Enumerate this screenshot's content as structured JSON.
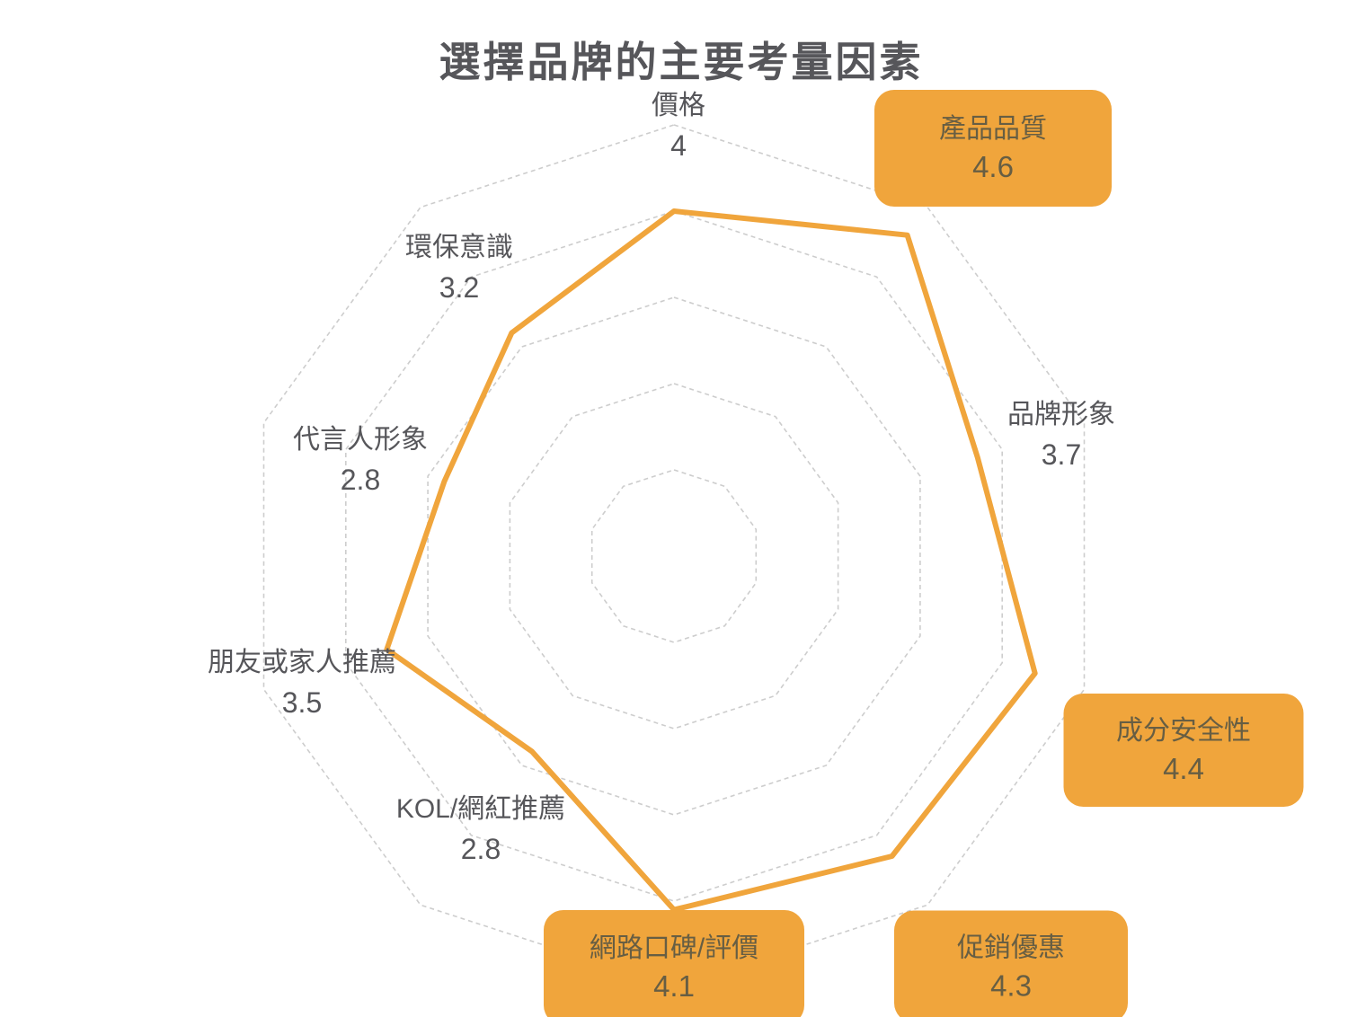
{
  "chart_data": {
    "type": "radar",
    "title": "選擇品牌的主要考量因素",
    "scale": {
      "min": 0,
      "max": 5,
      "ring_count": 5,
      "axis_count": 10,
      "grid": "dashed-decagon",
      "radial_spokes": false
    },
    "legend": null,
    "indicators": [
      {
        "label": "價格",
        "value": 4.0,
        "display": "4",
        "badge": false
      },
      {
        "label": "產品品質",
        "value": 4.6,
        "display": "4.6",
        "badge": true
      },
      {
        "label": "品牌形象",
        "value": 3.7,
        "display": "3.7",
        "badge": false
      },
      {
        "label": "成分安全性",
        "value": 4.4,
        "display": "4.4",
        "badge": true
      },
      {
        "label": "促銷優惠",
        "value": 4.3,
        "display": "4.3",
        "badge": true
      },
      {
        "label": "網路口碑/評價",
        "value": 4.1,
        "display": "4.1",
        "badge": true
      },
      {
        "label": "KOL/網紅推薦",
        "value": 2.8,
        "display": "2.8",
        "badge": false
      },
      {
        "label": "朋友或家人推薦",
        "value": 3.5,
        "display": "3.5",
        "badge": false
      },
      {
        "label": "代言人形象",
        "value": 2.8,
        "display": "2.8",
        "badge": false
      },
      {
        "label": "環保意識",
        "value": 3.2,
        "display": "3.2",
        "badge": false
      }
    ],
    "colors": {
      "line": "#F0A53C",
      "badge_background": "#F0A53C",
      "badge_text": "#675E43",
      "grid": "#CDCDCD",
      "text": "#56565A",
      "background": "#FFFFFF"
    }
  }
}
